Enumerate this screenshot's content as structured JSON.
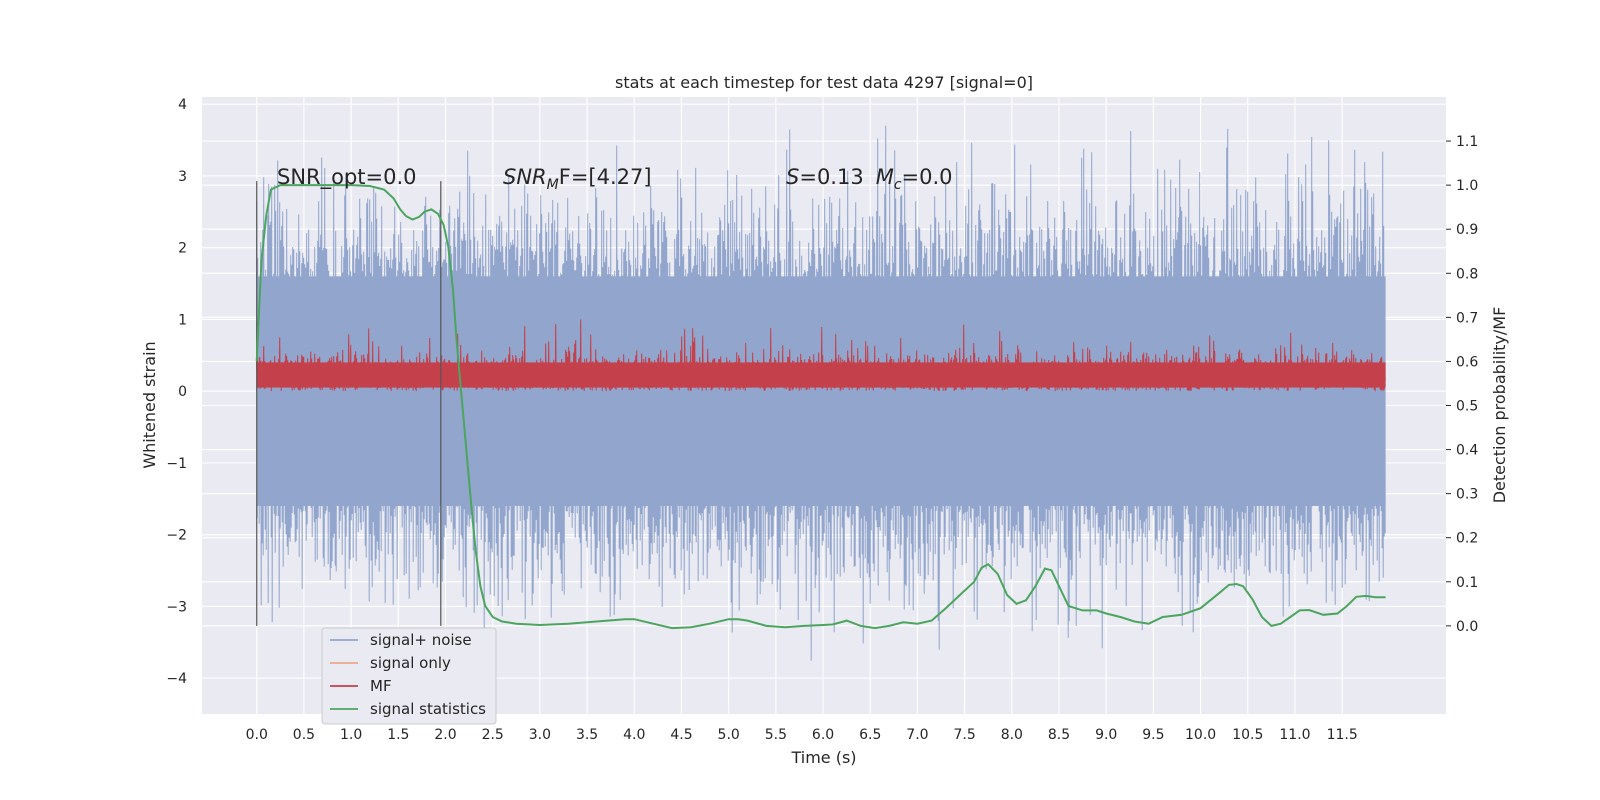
{
  "chart_data": {
    "type": "line",
    "title": "stats at each timestep for test data 4297 [signal=0]",
    "xlabel": "Time (s)",
    "ylabel_left": "Whitened strain",
    "ylabel_right": "Detection probability/MF",
    "xlim": [
      -0.58,
      12.6
    ],
    "ylim_left": [
      -4.5,
      4.1
    ],
    "ylim_right": [
      -0.2,
      1.2
    ],
    "x_ticks": [
      0.0,
      0.5,
      1.0,
      1.5,
      2.0,
      2.5,
      3.0,
      3.5,
      4.0,
      4.5,
      5.0,
      5.5,
      6.0,
      6.5,
      7.0,
      7.5,
      8.0,
      8.5,
      9.0,
      9.5,
      10.0,
      10.5,
      11.0,
      11.5
    ],
    "x_tick_labels": [
      "0.0",
      "0.5",
      "1.0",
      "1.5",
      "2.0",
      "2.5",
      "3.0",
      "3.5",
      "4.0",
      "4.5",
      "5.0",
      "5.5",
      "6.0",
      "6.5",
      "7.0",
      "7.5",
      "8.0",
      "8.5",
      "9.0",
      "9.5",
      "10.0",
      "10.5",
      "11.0",
      "11.5"
    ],
    "y_left_ticks": [
      -4,
      -3,
      -2,
      -1,
      0,
      1,
      2,
      3,
      4
    ],
    "y_left_tick_labels": [
      "−4",
      "−3",
      "−2",
      "−1",
      "0",
      "1",
      "2",
      "3",
      "4"
    ],
    "y_right_ticks": [
      0.0,
      0.1,
      0.2,
      0.3,
      0.4,
      0.5,
      0.6,
      0.7,
      0.8,
      0.9,
      1.0,
      1.1
    ],
    "y_right_tick_labels": [
      "0.0",
      "0.1",
      "0.2",
      "0.3",
      "0.4",
      "0.5",
      "0.6",
      "0.7",
      "0.8",
      "0.9",
      "1.0",
      "1.1"
    ],
    "grid": true,
    "legend_position": "lower-left",
    "annotations": {
      "snr_opt": "SNR_opt=0.0",
      "snr_mf_main": "SNR",
      "snr_mf_sub": "M",
      "snr_mf_rest": "F=[4.27]",
      "s_label": "S",
      "s_value": "=0.13",
      "mc_label": "M",
      "mc_sub": "c",
      "mc_value": "=0.0"
    },
    "vertical_lines_x": [
      0.0,
      1.95
    ],
    "noise": {
      "x_range": [
        0.0,
        11.96
      ],
      "dense_band": [
        -1.6,
        1.6
      ],
      "peak_range": [
        -4.1,
        3.7
      ]
    },
    "series": [
      {
        "name": "signal+ noise",
        "color": "#92a6cd"
      },
      {
        "name": "signal only",
        "color": "#eaa98c"
      },
      {
        "name": "MF",
        "color": "#c4404a",
        "band": [
          0.0,
          0.6
        ]
      },
      {
        "name": "signal statistics",
        "color": "#4ca55e",
        "x": [
          0.0,
          0.05,
          0.1,
          0.15,
          0.25,
          0.4,
          0.6,
          0.8,
          1.0,
          1.2,
          1.35,
          1.45,
          1.52,
          1.58,
          1.65,
          1.72,
          1.78,
          1.85,
          1.92,
          1.98,
          2.03,
          2.08,
          2.12,
          2.17,
          2.22,
          2.27,
          2.32,
          2.37,
          2.42,
          2.5,
          2.6,
          2.75,
          3.0,
          3.3,
          3.6,
          3.9,
          4.0,
          4.2,
          4.4,
          4.6,
          4.8,
          5.0,
          5.1,
          5.2,
          5.4,
          5.6,
          5.8,
          6.0,
          6.1,
          6.25,
          6.4,
          6.55,
          6.7,
          6.85,
          7.0,
          7.15,
          7.3,
          7.45,
          7.6,
          7.68,
          7.75,
          7.85,
          7.95,
          8.05,
          8.15,
          8.25,
          8.35,
          8.42,
          8.5,
          8.6,
          8.75,
          8.9,
          9.0,
          9.15,
          9.3,
          9.45,
          9.6,
          9.8,
          10.0,
          10.2,
          10.3,
          10.38,
          10.45,
          10.55,
          10.65,
          10.75,
          10.85,
          10.95,
          11.05,
          11.15,
          11.3,
          11.45,
          11.55,
          11.65,
          11.75,
          11.85,
          11.96
        ],
        "y": [
          0.6,
          0.83,
          0.93,
          0.99,
          1.0,
          1.0,
          1.0,
          1.0,
          1.0,
          0.998,
          0.99,
          0.97,
          0.945,
          0.93,
          0.922,
          0.928,
          0.94,
          0.945,
          0.935,
          0.91,
          0.86,
          0.76,
          0.64,
          0.52,
          0.4,
          0.28,
          0.17,
          0.09,
          0.045,
          0.02,
          0.01,
          0.005,
          0.002,
          0.005,
          0.01,
          0.015,
          0.015,
          0.005,
          -0.005,
          -0.003,
          0.005,
          0.015,
          0.015,
          0.012,
          0.0,
          -0.003,
          0.0,
          0.002,
          0.003,
          0.012,
          0.0,
          -0.005,
          0.0,
          0.008,
          0.005,
          0.012,
          0.04,
          0.07,
          0.1,
          0.132,
          0.14,
          0.118,
          0.07,
          0.05,
          0.058,
          0.09,
          0.13,
          0.126,
          0.09,
          0.045,
          0.035,
          0.035,
          0.028,
          0.02,
          0.01,
          0.005,
          0.02,
          0.025,
          0.04,
          0.075,
          0.093,
          0.095,
          0.09,
          0.06,
          0.02,
          0.0,
          0.005,
          0.02,
          0.035,
          0.036,
          0.025,
          0.028,
          0.045,
          0.066,
          0.068,
          0.065,
          0.065
        ]
      }
    ]
  }
}
